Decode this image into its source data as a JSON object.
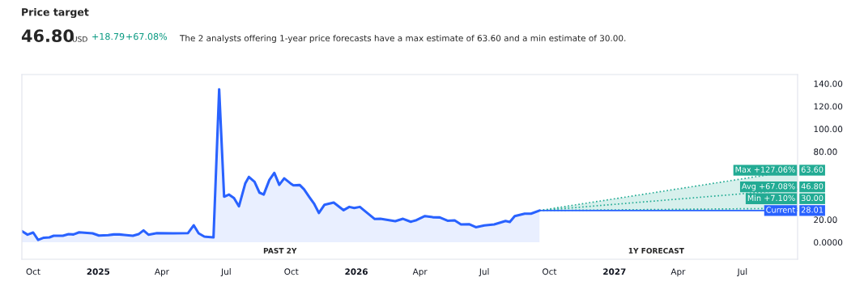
{
  "chart_data": {
    "type": "area",
    "title": "Price target",
    "annotations": [
      "46.80",
      "USD",
      "+18.79",
      "+67.08%",
      "The 2 analysts offering 1-year price forecasts have a max estimate of 63.60 and a min estimate of 30.00.",
      "PAST 2Y",
      "1Y FORECAST"
    ],
    "xlim": [
      "2024-09-15",
      "2027-09-17"
    ],
    "xticks": [
      {
        "value": "2024-10-01",
        "label": "Oct"
      },
      {
        "value": "2025-01-01",
        "label": "2025"
      },
      {
        "value": "2025-04-01",
        "label": "Apr"
      },
      {
        "value": "2025-07-01",
        "label": "Jul"
      },
      {
        "value": "2025-10-01",
        "label": "Oct"
      },
      {
        "value": "2026-01-01",
        "label": "2026"
      },
      {
        "value": "2026-04-01",
        "label": "Apr"
      },
      {
        "value": "2026-07-01",
        "label": "Jul"
      },
      {
        "value": "2026-10-01",
        "label": "Oct"
      },
      {
        "value": "2027-01-01",
        "label": "2027"
      },
      {
        "value": "2027-04-01",
        "label": "Apr"
      },
      {
        "value": "2027-07-01",
        "label": "Jul"
      }
    ],
    "ylim": [
      -15,
      148
    ],
    "yticks": [
      {
        "value": 0,
        "label": "0.0000"
      },
      {
        "value": 20,
        "label": "20.00"
      },
      {
        "value": 80,
        "label": "80.00"
      },
      {
        "value": 100,
        "label": "100.00"
      },
      {
        "value": 120,
        "label": "120.00"
      },
      {
        "value": 140,
        "label": "140.00"
      }
    ],
    "grid": false,
    "legend": "right",
    "series": [
      {
        "color": "#2962ff",
        "x": [
          "2024-09-15",
          "2024-09-23",
          "2024-10-01",
          "2024-10-08",
          "2024-10-16",
          "2024-10-24",
          "2024-10-30",
          "2024-11-12",
          "2024-11-20",
          "2024-11-27",
          "2024-12-05",
          "2024-12-24",
          "2025-01-02",
          "2025-01-15",
          "2025-01-23",
          "2025-01-31",
          "2025-02-07",
          "2025-02-19",
          "2025-02-27",
          "2025-03-06",
          "2025-03-13",
          "2025-03-25",
          "2025-04-17",
          "2025-05-08",
          "2025-05-16",
          "2025-05-23",
          "2025-05-31",
          "2025-06-13",
          "2025-06-21",
          "2025-06-28",
          "2025-07-05",
          "2025-07-12",
          "2025-07-19",
          "2025-07-28",
          "2025-08-02",
          "2025-08-10",
          "2025-08-17",
          "2025-08-23",
          "2025-08-31",
          "2025-09-07",
          "2025-09-14",
          "2025-09-21",
          "2025-09-30",
          "2025-10-04",
          "2025-10-13",
          "2025-10-19",
          "2025-10-27",
          "2025-11-02",
          "2025-11-09",
          "2025-11-17",
          "2025-11-30",
          "2025-12-14",
          "2025-12-22",
          "2025-12-29",
          "2026-01-06",
          "2026-01-14",
          "2026-01-27",
          "2026-02-04",
          "2026-02-25",
          "2026-03-08",
          "2026-03-19",
          "2026-03-27",
          "2026-04-08",
          "2026-04-19",
          "2026-04-29",
          "2026-05-10",
          "2026-05-20",
          "2026-05-29",
          "2026-06-10",
          "2026-06-19",
          "2026-07-01",
          "2026-07-15",
          "2026-07-31",
          "2026-08-06",
          "2026-08-13",
          "2026-08-27",
          "2026-09-05",
          "2026-09-17"
        ],
        "values": [
          9.8,
          6.7,
          8.6,
          2.1,
          4.0,
          4.3,
          5.7,
          5.7,
          7.1,
          6.9,
          8.8,
          7.9,
          5.9,
          6.2,
          6.9,
          6.9,
          6.4,
          5.7,
          7.1,
          10.5,
          6.7,
          8.1,
          7.9,
          8.1,
          15,
          7.9,
          5,
          4.3,
          135,
          40.2,
          42.1,
          39,
          31.7,
          52.1,
          57.6,
          53.3,
          43.8,
          42.1,
          55,
          61.2,
          50.7,
          56.4,
          51.9,
          50.2,
          50.5,
          46.7,
          39.5,
          34.3,
          25.9,
          33.1,
          35,
          28.3,
          31.2,
          30.2,
          31.2,
          27.1,
          20.5,
          20.7,
          18.6,
          20.7,
          18.1,
          19.5,
          23.1,
          22.1,
          21.9,
          19.0,
          19.3,
          15.7,
          15.9,
          13.3,
          14.8,
          15.7,
          18.8,
          17.9,
          23.1,
          25.2,
          25.2,
          28.01
        ]
      },
      {
        "type": "line",
        "name": "Max +127.06%",
        "color": "#22ab94",
        "line_style": "dotted",
        "x": [
          "2026-09-17",
          "2027-09-17"
        ],
        "values": [
          28.01,
          63.6
        ],
        "lower": [
          28.01,
          28.01
        ],
        "upper": [
          28.01,
          63.6
        ],
        "value_labels": [
          null,
          "63.60"
        ]
      },
      {
        "type": "line",
        "name": "Avg +67.08%",
        "color": "#22ab94",
        "line_style": "dotted",
        "x": [
          "2026-09-17",
          "2027-09-17"
        ],
        "values": [
          28.01,
          46.8
        ],
        "value_labels": [
          null,
          "46.80"
        ]
      },
      {
        "type": "line",
        "name": "Min +7.10%",
        "color": "#22ab94",
        "line_style": "dotted",
        "x": [
          "2026-09-17",
          "2027-09-17"
        ],
        "values": [
          28.01,
          30.0
        ],
        "value_labels": [
          null,
          "30.00"
        ]
      },
      {
        "type": "line",
        "name": "Current",
        "color": "#2962ff",
        "line_style": "solid",
        "x": [
          "2026-09-17",
          "2027-09-17"
        ],
        "values": [
          28.01,
          28.01
        ],
        "value_labels": [
          null,
          "28.01"
        ]
      }
    ]
  }
}
